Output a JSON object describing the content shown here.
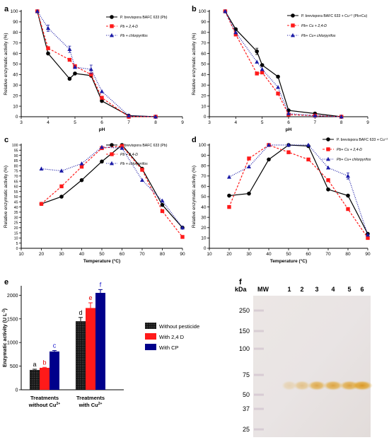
{
  "colors": {
    "pb": "#000000",
    "pb_24d": "#ff1a1a",
    "pb_cp": "#1a1aa6",
    "bar_without_pesticide": "#111111",
    "bar_with_24d": "#ff1a1a",
    "bar_with_cp": "#00008b",
    "sig_black": "#000000",
    "sig_red": "#e60000",
    "sig_blue": "#1a1acc",
    "gel_band": "#e0a020"
  },
  "panels": {
    "a": "a",
    "b": "b",
    "c": "c",
    "d": "d",
    "e": "e",
    "f": "f"
  },
  "chart_data": [
    {
      "id": "a",
      "type": "line",
      "xlabel": "pH",
      "ylabel": "Relative enzymatic activity (%)",
      "xlim": [
        3,
        9
      ],
      "ylim": [
        0,
        100
      ],
      "xticks": [
        3,
        4,
        5,
        6,
        7,
        8,
        9
      ],
      "yticks": [
        0,
        10,
        20,
        30,
        40,
        50,
        60,
        70,
        80,
        90,
        100
      ],
      "legend_position": "top-right",
      "series": [
        {
          "name": "P. brevispora BAFC 633 (Pb)",
          "style": "pb",
          "x": [
            3.6,
            4.0,
            4.8,
            5.0,
            5.6,
            6.0,
            7.0,
            8.0
          ],
          "y": [
            100,
            60,
            36,
            41,
            39,
            15,
            1,
            0
          ],
          "err": [
            0,
            0,
            0,
            0,
            0,
            0,
            0,
            0
          ]
        },
        {
          "name": "Pb + 2,4-D",
          "style": "pb_24d",
          "x": [
            3.6,
            4.0,
            4.8,
            5.0,
            5.6,
            6.0,
            7.0,
            8.0
          ],
          "y": [
            100,
            65,
            54,
            48,
            40,
            18,
            0,
            0
          ],
          "err": [
            0,
            0,
            0,
            0,
            0,
            0,
            0,
            0
          ]
        },
        {
          "name": "Pb + chlorpyrifos",
          "style": "pb_cp",
          "x": [
            3.6,
            4.0,
            4.8,
            5.0,
            5.6,
            6.0,
            7.0,
            8.0
          ],
          "y": [
            100,
            84,
            64,
            47,
            45,
            24,
            1,
            0
          ],
          "err": [
            0,
            3,
            3,
            0,
            4,
            0,
            0,
            0
          ]
        }
      ]
    },
    {
      "id": "b",
      "type": "line",
      "xlabel": "pH",
      "ylabel": "Relative enzymatic activity (%)",
      "xlim": [
        3,
        9
      ],
      "ylim": [
        0,
        100
      ],
      "xticks": [
        3,
        4,
        5,
        6,
        7,
        8,
        9
      ],
      "yticks": [
        0,
        10,
        20,
        30,
        40,
        50,
        60,
        70,
        80,
        90,
        100
      ],
      "legend_position": "top-right",
      "series": [
        {
          "name": "P. brevispora BAFC 633 + Cu⁺² (Pb+Cu)",
          "style": "pb",
          "x": [
            3.6,
            4.0,
            4.8,
            5.0,
            5.6,
            6.0,
            7.0,
            8.0
          ],
          "y": [
            100,
            83,
            62,
            49,
            38,
            6,
            3,
            0
          ],
          "err": [
            1,
            0,
            3,
            0,
            0,
            0,
            0,
            0
          ]
        },
        {
          "name": "Pb+ Cu + 2,4-D",
          "style": "pb_24d",
          "x": [
            3.6,
            4.0,
            4.8,
            5.0,
            5.6,
            6.0,
            7.0,
            8.0
          ],
          "y": [
            100,
            78,
            41,
            42,
            22,
            2,
            1,
            0
          ],
          "err": [
            0,
            0,
            0,
            0,
            0,
            0,
            0,
            0
          ]
        },
        {
          "name": "Pb+ Cu+ chlorpyrifos",
          "style": "pb_cp",
          "x": [
            3.6,
            4.0,
            4.8,
            5.0,
            5.6,
            6.0,
            7.0,
            8.0
          ],
          "y": [
            100,
            80,
            52,
            45,
            28,
            3,
            1,
            0
          ],
          "err": [
            0,
            0,
            0,
            0,
            0,
            0,
            0,
            0
          ]
        }
      ]
    },
    {
      "id": "c",
      "type": "line",
      "xlabel": "Temperature (°C)",
      "ylabel": "Relative enzymatic activity (%)",
      "xlim": [
        10,
        90
      ],
      "ylim": [
        0,
        100
      ],
      "xticks": [
        10,
        20,
        30,
        40,
        50,
        60,
        70,
        80,
        90
      ],
      "yticks": [
        0,
        5,
        10,
        15,
        20,
        25,
        30,
        35,
        40,
        45,
        50,
        55,
        60,
        65,
        70,
        75,
        80,
        85,
        90,
        95,
        100
      ],
      "legend_position": "top-right",
      "series": [
        {
          "name": "P. brevispora BAFC 633 (Pb)",
          "style": "pb",
          "x": [
            20,
            30,
            40,
            50,
            60,
            70,
            80,
            90
          ],
          "y": [
            43,
            50,
            66,
            84,
            100,
            77,
            42,
            20
          ],
          "err": [
            0,
            0,
            0,
            0,
            0,
            0,
            0,
            0
          ]
        },
        {
          "name": "Pb + 2,4-D",
          "style": "pb_24d",
          "x": [
            20,
            30,
            40,
            50,
            60,
            70,
            80,
            90
          ],
          "y": [
            43,
            60,
            79,
            97,
            99,
            76,
            36,
            11
          ],
          "err": [
            0,
            0,
            0,
            0,
            0,
            0,
            0,
            0
          ]
        },
        {
          "name": "Pb + chlorpyrifos",
          "style": "pb_cp",
          "x": [
            20,
            30,
            40,
            50,
            60,
            70,
            80,
            90
          ],
          "y": [
            77,
            75,
            82,
            98,
            97,
            66,
            46,
            20
          ],
          "err": [
            0,
            0,
            0,
            0,
            0,
            0,
            0,
            0
          ]
        }
      ]
    },
    {
      "id": "d",
      "type": "line",
      "xlabel": "Temperature (°C)",
      "ylabel": "Relative enzymatic activity (%)",
      "xlim": [
        10,
        90
      ],
      "ylim": [
        0,
        100
      ],
      "xticks": [
        10,
        20,
        30,
        40,
        50,
        60,
        70,
        80,
        90
      ],
      "yticks": [
        0,
        10,
        20,
        30,
        40,
        50,
        60,
        70,
        80,
        90,
        100
      ],
      "legend_position": "top-right",
      "series": [
        {
          "name": "P. brevispora BAFC 633 + Cu⁺² (Pb+Cu)",
          "style": "pb",
          "x": [
            20,
            30,
            40,
            50,
            60,
            70,
            80,
            90
          ],
          "y": [
            51,
            53,
            86,
            100,
            99,
            57,
            51,
            14
          ],
          "err": [
            0,
            0,
            0,
            0,
            0,
            0,
            0,
            0
          ]
        },
        {
          "name": "Pb+ Cu + 2,4-D",
          "style": "pb_24d",
          "x": [
            20,
            30,
            40,
            50,
            60,
            70,
            80,
            90
          ],
          "y": [
            40,
            87,
            100,
            93,
            86,
            66,
            38,
            10
          ],
          "err": [
            0,
            0,
            0,
            0,
            0,
            0,
            0,
            0
          ]
        },
        {
          "name": "Pb+ Cu+ chlorpyrifos",
          "style": "pb_cp",
          "x": [
            20,
            30,
            40,
            50,
            60,
            70,
            80,
            90
          ],
          "y": [
            69,
            79,
            100,
            100,
            100,
            78,
            70,
            13
          ],
          "err": [
            0,
            0,
            0,
            0,
            0,
            0,
            3,
            0
          ]
        }
      ]
    },
    {
      "id": "e",
      "type": "bar",
      "ylabel": "Enzymatic activity (U L⁻¹)",
      "ylabel_main": "Enzymatic activity",
      "ylabel_unit": "(U L",
      "ylabel_sup": "-1",
      "ylabel_close": ")",
      "ylim": [
        0,
        2200
      ],
      "yticks": [
        0,
        500,
        1000,
        1500,
        2000
      ],
      "legend_position": "right",
      "groups": [
        {
          "line1": "Treatments",
          "line2": "without Cu",
          "sup": "2+"
        },
        {
          "line1": "Treatments",
          "line2": "with Cu",
          "sup": "2+"
        }
      ],
      "series": [
        {
          "name": "Without pesticide",
          "style": "bar_without_pesticide",
          "values": [
            420,
            1450
          ],
          "err": [
            15,
            80
          ],
          "letters": [
            "a",
            "d"
          ],
          "letter_color": "sig_black"
        },
        {
          "name": "With 2,4 D",
          "style": "bar_with_24d",
          "values": [
            465,
            1730
          ],
          "err": [
            10,
            110
          ],
          "letters": [
            "b",
            "e"
          ],
          "letter_color": "sig_red"
        },
        {
          "name": "With CP",
          "style": "bar_with_cp",
          "values": [
            810,
            2050
          ],
          "err": [
            20,
            70
          ],
          "letters": [
            "c",
            "f"
          ],
          "letter_color": "sig_blue"
        }
      ]
    }
  ],
  "gel": {
    "kda_label": "kDa",
    "mw_label": "MW",
    "lanes": [
      "1",
      "2",
      "3",
      "4",
      "5",
      "6"
    ],
    "markers": [
      "250",
      "150",
      "100",
      "75",
      "50",
      "37",
      "25"
    ]
  }
}
